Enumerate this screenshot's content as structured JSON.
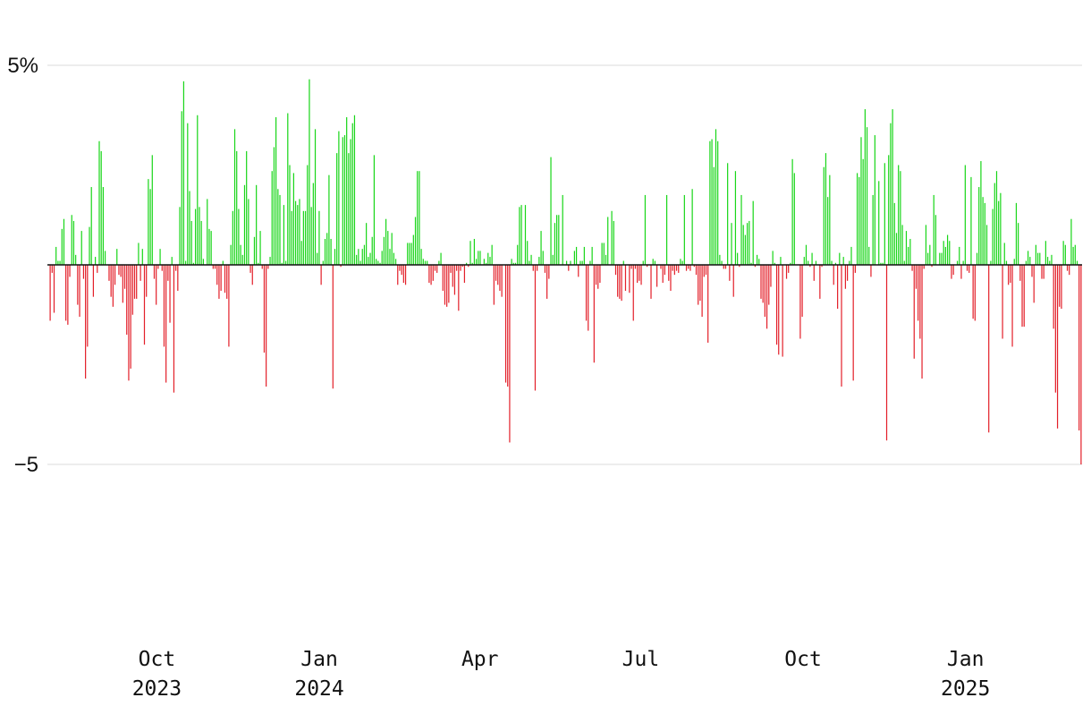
{
  "chart_data": {
    "type": "bar",
    "title": "",
    "xlabel": "",
    "ylabel": "",
    "y_unit": "%",
    "ylim": [
      -8.6,
      5.3
    ],
    "xlim": [
      "2023-07-31",
      "2025-03-08"
    ],
    "grid": true,
    "legend": "none",
    "colors": {
      "up": "#19d619",
      "down": "#e3202a",
      "grid": "#e2e2e2",
      "zero_line": "#111111"
    },
    "y_ticks": [
      {
        "value": 5,
        "label": "5%"
      },
      {
        "value": -5,
        "label": "−5"
      }
    ],
    "x_ticks": [
      {
        "date": "2023-10-01",
        "month": "Oct",
        "year": "2023"
      },
      {
        "date": "2024-01-01",
        "month": "Jan",
        "year": "2024"
      },
      {
        "date": "2024-04-01",
        "month": "Apr",
        "year": ""
      },
      {
        "date": "2024-07-01",
        "month": "Jul",
        "year": ""
      },
      {
        "date": "2024-10-01",
        "month": "Oct",
        "year": ""
      },
      {
        "date": "2025-01-01",
        "month": "Jan",
        "year": "2025"
      }
    ],
    "series": [
      {
        "values": [
          -1.4,
          -0.2,
          -1.2,
          0.45,
          0.1,
          0.1,
          0.9,
          1.15,
          -1.4,
          -1.5,
          -0.3,
          1.25,
          1.1,
          0.25,
          -1.0,
          -1.3,
          0.85,
          -0.35,
          -2.85,
          -2.05,
          0.95,
          1.95,
          -0.8,
          0.2,
          -0.2,
          3.1,
          2.85,
          1.95,
          0.35,
          0.0,
          -0.4,
          -0.8,
          -1.05,
          -0.5,
          0.4,
          -0.25,
          -0.3,
          -0.95,
          -0.6,
          -1.75,
          -2.9,
          -2.6,
          -1.25,
          -0.85,
          -0.85,
          0.55,
          -0.4,
          0.4,
          -2.0,
          -0.8,
          2.15,
          1.9,
          2.75,
          -0.35,
          -1.0,
          -0.1,
          0.4,
          -0.15,
          -2.05,
          -2.95,
          -0.4,
          -1.45,
          0.2,
          -3.2,
          -0.15,
          -0.65,
          1.45,
          3.85,
          4.6,
          0.1,
          3.55,
          1.85,
          1.1,
          0.05,
          1.4,
          3.75,
          1.45,
          1.1,
          0.15,
          0.0,
          1.65,
          0.9,
          0.85,
          -0.1,
          -0.1,
          -0.5,
          -0.85,
          -0.65,
          0.1,
          -0.7,
          -0.85,
          -2.05,
          0.5,
          1.35,
          3.4,
          2.85,
          1.4,
          0.5,
          0.25,
          2.0,
          2.85,
          1.65,
          -0.2,
          -0.5,
          0.7,
          2.0,
          0.05,
          0.85,
          -0.1,
          -2.2,
          -3.05,
          -0.1,
          0.2,
          2.35,
          2.95,
          3.7,
          1.9,
          1.75,
          0.05,
          1.5,
          0.1,
          3.8,
          2.5,
          1.35,
          2.3,
          1.6,
          1.5,
          1.65,
          0.6,
          1.35,
          1.35,
          2.5,
          4.65,
          1.45,
          2.05,
          3.4,
          0.3,
          1.35,
          -0.5,
          0.1,
          0.65,
          0.8,
          2.25,
          0.65,
          -3.1,
          0.4,
          2.8,
          3.35,
          -0.05,
          3.2,
          3.25,
          3.7,
          2.8,
          3.15,
          3.55,
          3.75,
          0.25,
          0.4,
          0.1,
          0.4,
          0.5,
          1.05,
          0.2,
          0.3,
          0.7,
          2.75,
          0.15,
          0.1,
          0.05,
          0.35,
          0.7,
          1.15,
          0.85,
          0.4,
          0.8,
          0.3,
          0.15,
          -0.5,
          -0.15,
          -0.25,
          -0.45,
          -0.5,
          0.55,
          0.55,
          0.55,
          0.75,
          1.2,
          2.35,
          2.35,
          0.4,
          0.15,
          0.1,
          0.1,
          -0.45,
          -0.5,
          -0.4,
          -0.15,
          -0.2,
          0.1,
          0.3,
          -0.65,
          -1.0,
          -1.05,
          -0.95,
          -0.2,
          -0.55,
          -0.75,
          -0.15,
          -1.15,
          -0.15,
          -0.05,
          -0.45,
          0.05,
          -0.05,
          0.6,
          0.05,
          0.65,
          0.15,
          0.35,
          0.35,
          0.0,
          0.15,
          0.05,
          0.3,
          0.2,
          0.5,
          -1.0,
          -0.4,
          -0.5,
          -0.65,
          -0.8,
          0.0,
          -2.95,
          -3.05,
          -4.45,
          0.15,
          0.05,
          0.05,
          0.5,
          1.45,
          1.5,
          0.0,
          1.5,
          0.6,
          0.1,
          0.25,
          -0.15,
          -3.15,
          -0.15,
          0.2,
          0.85,
          0.35,
          -0.2,
          -0.85,
          -0.35,
          2.7,
          0.25,
          1.05,
          1.25,
          1.25,
          0.0,
          1.75,
          0.0,
          0.1,
          -0.15,
          0.1,
          0.0,
          0.35,
          0.45,
          -0.3,
          0.1,
          0.1,
          0.45,
          -1.4,
          -1.65,
          0.1,
          0.45,
          -2.45,
          -0.5,
          -0.6,
          -0.45,
          0.55,
          0.55,
          0.25,
          1.2,
          0.0,
          1.35,
          1.1,
          -0.25,
          -0.8,
          -0.85,
          -0.9,
          0.1,
          -0.65,
          0.0,
          -0.7,
          -0.1,
          -1.4,
          -0.1,
          -0.45,
          -0.4,
          -0.5,
          0.1,
          1.75,
          -0.05,
          0.0,
          -0.85,
          0.15,
          0.1,
          -0.55,
          0.0,
          -0.1,
          -0.45,
          -0.25,
          1.75,
          -0.4,
          -0.65,
          -0.15,
          -0.25,
          -0.15,
          -0.2,
          0.15,
          0.1,
          1.75,
          -0.15,
          -0.1,
          -0.15,
          1.9,
          -0.05,
          -0.25,
          -1.0,
          -0.9,
          -1.3,
          -0.3,
          -0.25,
          -1.95,
          3.1,
          3.15,
          2.45,
          3.4,
          3.1,
          0.25,
          0.1,
          -0.1,
          -0.1,
          2.55,
          -0.4,
          1.05,
          -0.8,
          2.35,
          0.3,
          -0.05,
          1.75,
          1.0,
          0.75,
          1.05,
          1.1,
          0.05,
          1.6,
          -0.05,
          0.25,
          0.15,
          -0.85,
          -0.95,
          -1.3,
          -1.6,
          -1.0,
          -0.55,
          0.35,
          0.05,
          -2.0,
          -2.25,
          0.2,
          -2.3,
          0.0,
          -0.35,
          -0.2,
          0.05,
          2.65,
          2.3,
          0.0,
          0.0,
          -1.85,
          -1.3,
          0.2,
          0.5,
          0.1,
          -0.05,
          0.3,
          -0.4,
          0.1,
          0.0,
          -0.85,
          -0.05,
          2.45,
          2.8,
          1.7,
          2.25,
          0.1,
          -0.5,
          0.05,
          -1.1,
          0.3,
          -3.05,
          0.2,
          -0.6,
          -0.4,
          0.1,
          0.45,
          -2.9,
          -0.2,
          2.3,
          2.2,
          3.2,
          2.65,
          3.9,
          3.45,
          0.45,
          -0.3,
          1.75,
          3.25,
          0.0,
          2.1,
          0.05,
          0.05,
          2.55,
          -4.4,
          2.75,
          3.55,
          3.9,
          1.55,
          0.8,
          2.5,
          2.35,
          1.0,
          0.1,
          0.85,
          0.45,
          0.65,
          -0.15,
          -2.35,
          -0.6,
          -1.4,
          -1.85,
          -2.85,
          -0.1,
          1.0,
          0.3,
          0.5,
          -0.05,
          1.75,
          1.25,
          0.0,
          0.3,
          0.3,
          0.6,
          0.45,
          0.75,
          0.6,
          -0.35,
          -0.25,
          0.0,
          0.1,
          0.45,
          -0.35,
          0.1,
          2.5,
          -0.15,
          -0.2,
          2.2,
          -1.35,
          -1.4,
          0.3,
          1.95,
          2.6,
          1.7,
          1.55,
          1.0,
          -4.2,
          0.1,
          1.4,
          2.05,
          2.35,
          1.6,
          1.8,
          -1.85,
          0.55,
          0.1,
          -0.5,
          -0.45,
          -2.05,
          0.15,
          1.55,
          1.05,
          -0.4,
          -1.55,
          -1.55,
          0.1,
          0.35,
          0.2,
          -0.3,
          -0.95,
          0.5,
          0.3,
          0.3,
          -0.35,
          -0.35,
          0.6,
          0.2,
          0.1,
          0.25,
          -1.6,
          -3.2,
          -4.1,
          -1.05,
          -1.1,
          0.6,
          0.5,
          -0.15,
          -0.25,
          1.15,
          0.45,
          0.5,
          0.1,
          -4.15,
          -5.0
        ]
      }
    ]
  }
}
